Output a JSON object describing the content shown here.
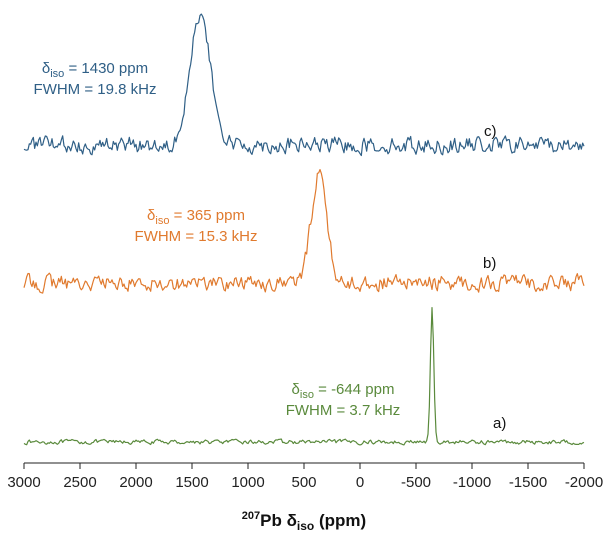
{
  "chart_data": {
    "type": "line",
    "title": "",
    "x_axis": {
      "label_parts": {
        "superscript": "207",
        "nucleus": "Pb",
        "symbol": "δ",
        "subscript": "iso",
        "unit": "(ppm)"
      },
      "range": [
        3000,
        -2000
      ],
      "reversed": true,
      "ticks": [
        3000,
        2500,
        2000,
        1500,
        1000,
        500,
        0,
        -500,
        -1000,
        -1500,
        -2000
      ],
      "tick_labels": [
        "3000",
        "2500",
        "2000",
        "1500",
        "1000",
        "500",
        "0",
        "-500",
        "-1000",
        "-1500",
        "-2000"
      ]
    },
    "y_axis": {
      "visible": false,
      "units": "normalized intensity (stacked, offset)"
    },
    "grid": false,
    "series": [
      {
        "id": "a",
        "trace_label": "a)",
        "color": "#5a8a3c",
        "peak_ppm": -644,
        "peak_fwhm_ppm": 35,
        "noise": 0.025,
        "annotation": {
          "delta_symbol": "δ",
          "delta_sub": "iso",
          "delta_value": "= -644 ppm",
          "fwhm": "FWHM = 3.7 kHz"
        }
      },
      {
        "id": "b",
        "trace_label": "b)",
        "color": "#e07a2e",
        "peak_ppm": 365,
        "peak_fwhm_ppm": 160,
        "noise": 0.11,
        "annotation": {
          "delta_symbol": "δ",
          "delta_sub": "iso",
          "delta_value": "= 365 ppm",
          "fwhm": "FWHM = 15.3 kHz"
        }
      },
      {
        "id": "c",
        "trace_label": "c)",
        "color": "#2f5f86",
        "peak_ppm": 1430,
        "peak_fwhm_ppm": 220,
        "noise": 0.1,
        "annotation": {
          "delta_symbol": "δ",
          "delta_sub": "iso",
          "delta_value": "= 1430 ppm",
          "fwhm": "FWHM = 19.8 kHz"
        }
      }
    ]
  }
}
